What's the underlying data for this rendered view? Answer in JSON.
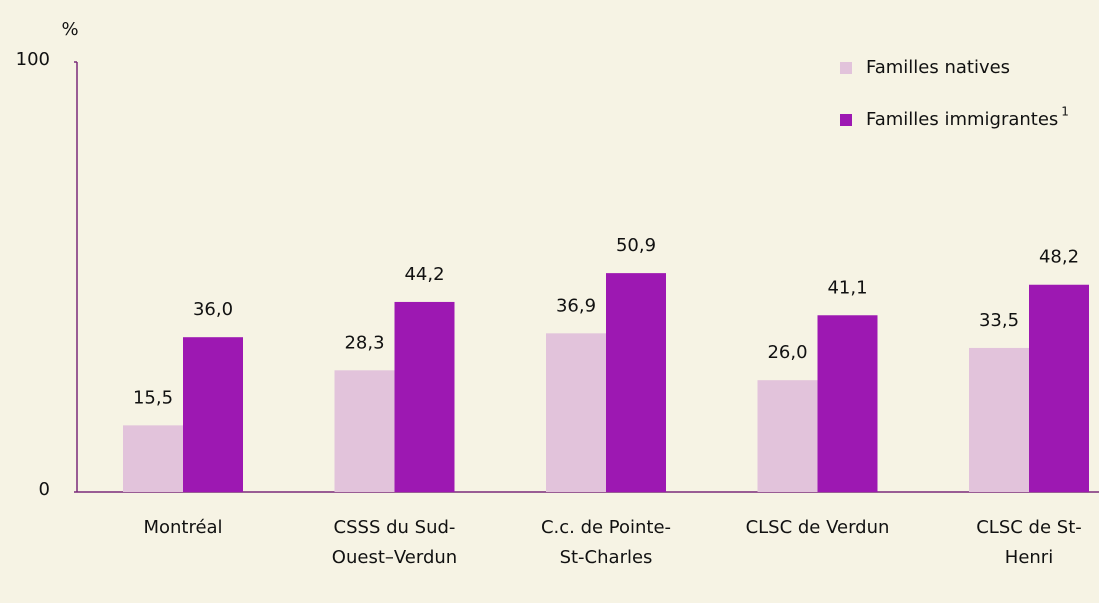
{
  "chart_data": {
    "type": "bar",
    "y_label": "%",
    "categories": [
      "Montréal",
      "CSSS du Sud-Ouest–Verdun",
      "C.c. de Pointe-St-Charles",
      "CLSC de Verdun",
      "CLSC de St-Henri"
    ],
    "series": [
      {
        "name": "Familles natives",
        "color": "#e2c3db",
        "values": [
          15.5,
          28.3,
          36.9,
          26.0,
          33.5
        ],
        "value_labels": [
          "15,5",
          "28,3",
          "36,9",
          "26,0",
          "33,5"
        ]
      },
      {
        "name": "Familles immigrantes",
        "superscript": "1",
        "color": "#9d18b2",
        "values": [
          36.0,
          44.2,
          50.9,
          41.1,
          48.2
        ],
        "value_labels": [
          "36,0",
          "44,2",
          "50,9",
          "41,1",
          "48,2"
        ]
      }
    ],
    "ylim": [
      0,
      100
    ],
    "yticks": [
      0,
      100
    ],
    "grid": false,
    "legend": "upper right"
  }
}
